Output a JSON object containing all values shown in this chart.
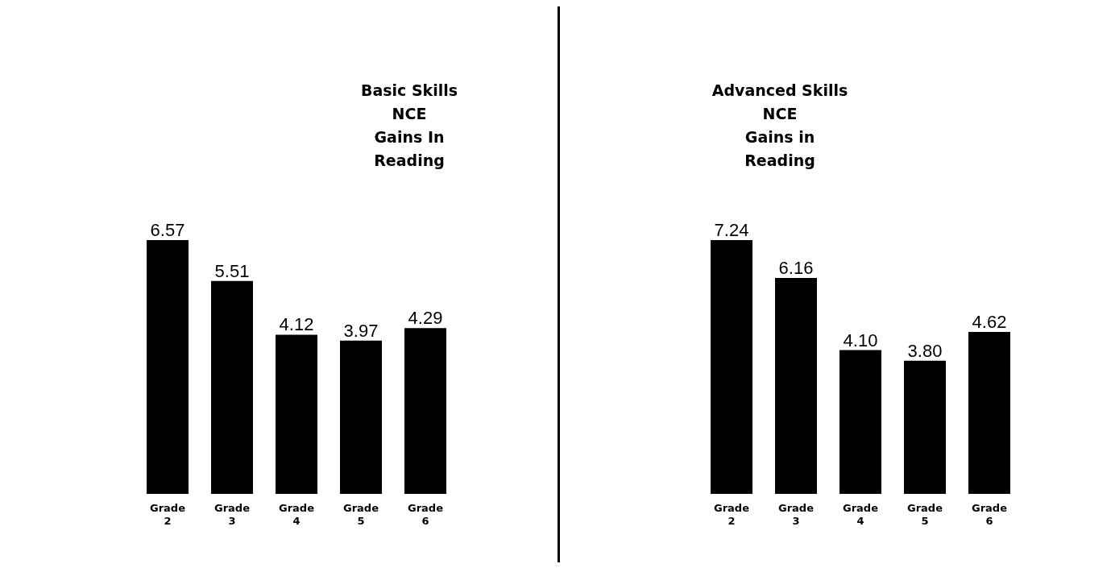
{
  "chart_data": [
    {
      "type": "bar",
      "title": "Basic Skills\nNCE\nGains In\nReading",
      "categories": [
        "Grade 2",
        "Grade 3",
        "Grade 4",
        "Grade 5",
        "Grade 6"
      ],
      "values": [
        6.57,
        5.51,
        4.12,
        3.97,
        4.29
      ],
      "value_labels": [
        "6.57",
        "5.51",
        "4.12",
        "3.97",
        "4.29"
      ],
      "color": "#000000"
    },
    {
      "type": "bar",
      "title": "Advanced Skills\nNCE\nGains in\nReading",
      "categories": [
        "Grade 2",
        "Grade 3",
        "Grade 4",
        "Grade 5",
        "Grade 6"
      ],
      "values": [
        7.24,
        6.16,
        4.1,
        3.8,
        4.62
      ],
      "value_labels": [
        "7.24",
        "6.16",
        "4.10",
        "3.80",
        "4.62"
      ],
      "color": "#000000"
    }
  ]
}
